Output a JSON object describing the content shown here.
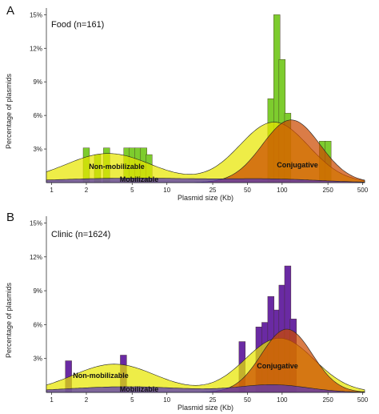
{
  "colors": {
    "conjugative": "#cc4a00",
    "mobilizable": "#5533bb",
    "non_mobilizable": "#e8e600",
    "food_bars": "#7dcc2e",
    "clinic_bars": "#6a2aa3"
  },
  "chart_data": [
    {
      "type": "histogram+density",
      "panel_letter": "A",
      "title": "Food (n=161)",
      "xlabel": "Plasmid size (Kb)",
      "ylabel": "Percentage of plasmids",
      "x_scale": "log10",
      "x_ticks": [
        1,
        2,
        5,
        10,
        25,
        50,
        100,
        250,
        500
      ],
      "x_tick_labels": [
        "1",
        "2",
        "5",
        "10",
        "25",
        "50",
        "100",
        "250",
        "500"
      ],
      "y_ticks": [
        3,
        6,
        9,
        12,
        15
      ],
      "y_tick_labels": [
        "3%",
        "6%",
        "9%",
        "12%",
        "15%"
      ],
      "ylim": [
        0,
        15.6
      ],
      "xlim": [
        0.9,
        520
      ],
      "histogram_color": "food_bars",
      "histogram": {
        "x": [
          2,
          2.5,
          3,
          4.5,
          5,
          5.6,
          6.3,
          7,
          80,
          90,
          100,
          112,
          224,
          250
        ],
        "values": [
          3.1,
          2.5,
          3.1,
          3.1,
          3.1,
          3.1,
          3.1,
          2.5,
          7.5,
          15,
          11,
          6.2,
          3.7,
          3.7
        ]
      },
      "density": [
        {
          "name": "Non-mobilizable",
          "color": "non_mobilizable",
          "components": [
            {
              "center": 3.1,
              "sd": 0.38,
              "peak": 2.6
            },
            {
              "center": 85,
              "sd": 0.3,
              "peak": 5.4
            }
          ]
        },
        {
          "name": "Conjugative",
          "color": "conjugative",
          "components": [
            {
              "center": 120,
              "sd": 0.25,
              "peak": 5.6
            }
          ]
        },
        {
          "name": "Mobilizable",
          "color": "mobilizable",
          "components": [
            {
              "center": 5,
              "sd": 0.7,
              "peak": 0.4
            },
            {
              "center": 90,
              "sd": 0.4,
              "peak": 0.25
            }
          ]
        }
      ]
    },
    {
      "type": "histogram+density",
      "panel_letter": "B",
      "title": "Clinic (n=1624)",
      "xlabel": "Plasmid size (Kb)",
      "ylabel": "Percentage of plasmids",
      "x_scale": "log10",
      "x_ticks": [
        1,
        2,
        5,
        10,
        25,
        50,
        100,
        250,
        500
      ],
      "x_tick_labels": [
        "1",
        "2",
        "5",
        "10",
        "25",
        "50",
        "100",
        "250",
        "500"
      ],
      "y_ticks": [
        3,
        6,
        9,
        12,
        15
      ],
      "y_tick_labels": [
        "3%",
        "6%",
        "9%",
        "12%",
        "15%"
      ],
      "ylim": [
        0,
        15.6
      ],
      "xlim": [
        0.9,
        520
      ],
      "histogram_color": "clinic_bars",
      "histogram": {
        "x": [
          1.4,
          4.2,
          45,
          63,
          71,
          80,
          90,
          100,
          112,
          125
        ],
        "values": [
          2.8,
          3.3,
          4.5,
          5.8,
          6.2,
          8.5,
          7.3,
          9.5,
          11.2,
          6.5
        ]
      },
      "density": [
        {
          "name": "Non-mobilizable",
          "color": "non_mobilizable",
          "components": [
            {
              "center": 3.5,
              "sd": 0.36,
              "peak": 2.5
            },
            {
              "center": 95,
              "sd": 0.3,
              "peak": 4.8
            }
          ]
        },
        {
          "name": "Conjugative",
          "color": "conjugative",
          "components": [
            {
              "center": 110,
              "sd": 0.22,
              "peak": 5.6
            }
          ]
        },
        {
          "name": "Mobilizable",
          "color": "mobilizable",
          "components": [
            {
              "center": 4.5,
              "sd": 0.55,
              "peak": 0.5
            },
            {
              "center": 85,
              "sd": 0.3,
              "peak": 0.65
            }
          ]
        }
      ]
    }
  ]
}
